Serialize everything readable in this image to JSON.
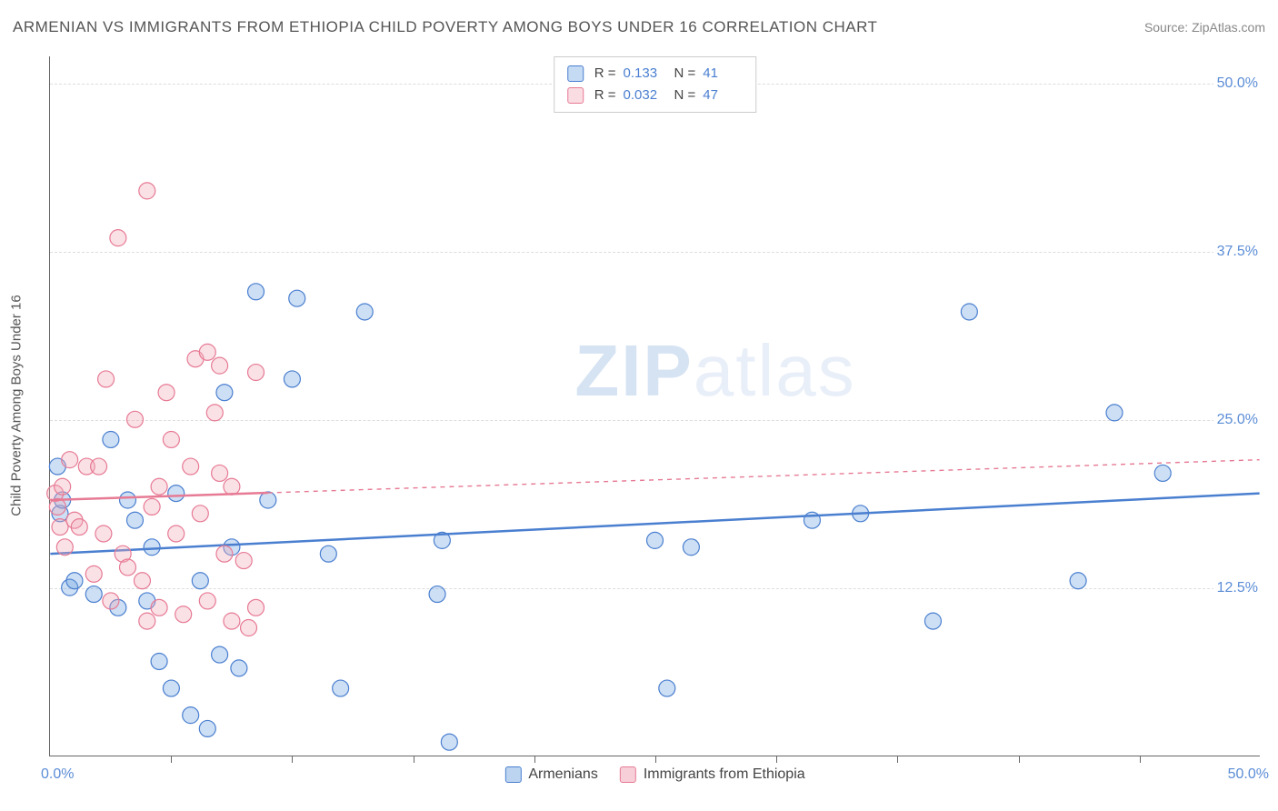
{
  "title": "ARMENIAN VS IMMIGRANTS FROM ETHIOPIA CHILD POVERTY AMONG BOYS UNDER 16 CORRELATION CHART",
  "source": "Source: ZipAtlas.com",
  "y_axis_title": "Child Poverty Among Boys Under 16",
  "watermark_a": "ZIP",
  "watermark_b": "atlas",
  "chart": {
    "type": "scatter",
    "xlim": [
      0,
      50
    ],
    "ylim": [
      0,
      52
    ],
    "x_label_min": "0.0%",
    "x_label_max": "50.0%",
    "x_ticks_at": [
      5,
      10,
      15,
      20,
      25,
      30,
      35,
      40,
      45
    ],
    "y_gridlines": [
      {
        "value": 12.5,
        "label": "12.5%"
      },
      {
        "value": 25.0,
        "label": "25.0%"
      },
      {
        "value": 37.5,
        "label": "37.5%"
      },
      {
        "value": 50.0,
        "label": "50.0%"
      }
    ],
    "background_color": "#ffffff",
    "grid_color": "#dddddd",
    "marker_radius": 9,
    "marker_fill_opacity": 0.35,
    "marker_stroke_width": 1.2,
    "trend_line_width": 2.5,
    "trend_dash": "5,5",
    "series": [
      {
        "name": "Armenians",
        "color": "#6fa3e0",
        "stroke": "#4a7fd0",
        "r_value": "0.133",
        "n_value": "41",
        "trend": {
          "x1": 0,
          "y1": 15.0,
          "x2": 50,
          "y2": 19.5,
          "solid_until_x": 50
        },
        "points": [
          [
            0.3,
            21.5
          ],
          [
            0.4,
            18.0
          ],
          [
            0.5,
            19.0
          ],
          [
            0.8,
            12.5
          ],
          [
            1.0,
            13.0
          ],
          [
            1.8,
            12.0
          ],
          [
            2.5,
            23.5
          ],
          [
            2.8,
            11.0
          ],
          [
            3.2,
            19.0
          ],
          [
            3.5,
            17.5
          ],
          [
            4.0,
            11.5
          ],
          [
            4.2,
            15.5
          ],
          [
            4.5,
            7.0
          ],
          [
            5.0,
            5.0
          ],
          [
            5.2,
            19.5
          ],
          [
            5.8,
            3.0
          ],
          [
            6.2,
            13.0
          ],
          [
            6.5,
            2.0
          ],
          [
            7.0,
            7.5
          ],
          [
            7.2,
            27.0
          ],
          [
            7.5,
            15.5
          ],
          [
            7.8,
            6.5
          ],
          [
            8.5,
            34.5
          ],
          [
            9.0,
            19.0
          ],
          [
            10.0,
            28.0
          ],
          [
            10.2,
            34.0
          ],
          [
            11.5,
            15.0
          ],
          [
            12.0,
            5.0
          ],
          [
            13.0,
            33.0
          ],
          [
            16.0,
            12.0
          ],
          [
            16.2,
            16.0
          ],
          [
            16.5,
            1.0
          ],
          [
            25.0,
            16.0
          ],
          [
            25.5,
            5.0
          ],
          [
            26.5,
            15.5
          ],
          [
            31.5,
            17.5
          ],
          [
            33.5,
            18.0
          ],
          [
            36.5,
            10.0
          ],
          [
            38.0,
            33.0
          ],
          [
            42.5,
            13.0
          ],
          [
            44.0,
            25.5
          ],
          [
            46.0,
            21.0
          ]
        ]
      },
      {
        "name": "Immigrants from Ethiopia",
        "color": "#f2a8b8",
        "stroke": "#e77a94",
        "r_value": "0.032",
        "n_value": "47",
        "trend": {
          "x1": 0,
          "y1": 19.0,
          "x2": 50,
          "y2": 22.0,
          "solid_until_x": 9
        },
        "points": [
          [
            0.2,
            19.5
          ],
          [
            0.3,
            18.5
          ],
          [
            0.4,
            17.0
          ],
          [
            0.5,
            20.0
          ],
          [
            0.6,
            15.5
          ],
          [
            0.8,
            22.0
          ],
          [
            1.0,
            17.5
          ],
          [
            1.2,
            17.0
          ],
          [
            1.5,
            21.5
          ],
          [
            1.8,
            13.5
          ],
          [
            2.0,
            21.5
          ],
          [
            2.2,
            16.5
          ],
          [
            2.3,
            28.0
          ],
          [
            2.5,
            11.5
          ],
          [
            2.8,
            38.5
          ],
          [
            3.0,
            15.0
          ],
          [
            3.2,
            14.0
          ],
          [
            3.5,
            25.0
          ],
          [
            3.8,
            13.0
          ],
          [
            4.0,
            10.0
          ],
          [
            4.0,
            42.0
          ],
          [
            4.2,
            18.5
          ],
          [
            4.5,
            20.0
          ],
          [
            4.5,
            11.0
          ],
          [
            4.8,
            27.0
          ],
          [
            5.0,
            23.5
          ],
          [
            5.2,
            16.5
          ],
          [
            5.5,
            10.5
          ],
          [
            5.8,
            21.5
          ],
          [
            6.0,
            29.5
          ],
          [
            6.2,
            18.0
          ],
          [
            6.5,
            11.5
          ],
          [
            6.5,
            30.0
          ],
          [
            6.8,
            25.5
          ],
          [
            7.0,
            21.0
          ],
          [
            7.0,
            29.0
          ],
          [
            7.2,
            15.0
          ],
          [
            7.5,
            10.0
          ],
          [
            7.5,
            20.0
          ],
          [
            8.0,
            14.5
          ],
          [
            8.2,
            9.5
          ],
          [
            8.5,
            11.0
          ],
          [
            8.5,
            28.5
          ]
        ]
      }
    ]
  },
  "legend": {
    "r_label": "R =",
    "n_label": "N =",
    "bottom": [
      {
        "label": "Armenians",
        "fill": "#bcd4f0",
        "stroke": "#4a7fd0"
      },
      {
        "label": "Immigrants from Ethiopia",
        "fill": "#f7cfd8",
        "stroke": "#e77a94"
      }
    ]
  },
  "watermark_color": "#d6e3f3"
}
